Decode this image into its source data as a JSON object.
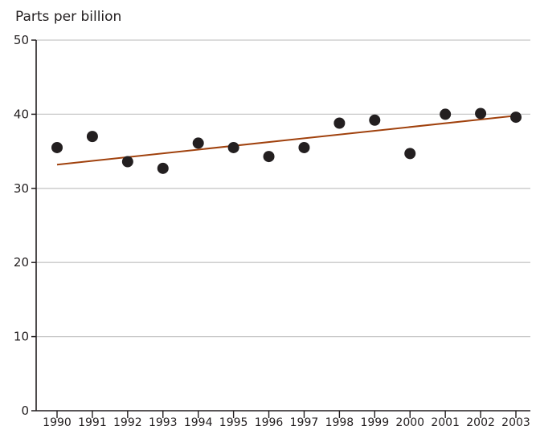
{
  "chart_data": {
    "type": "scatter",
    "title": "",
    "xlabel": "",
    "ylabel": "Parts per billion",
    "ylim": [
      0,
      50
    ],
    "yticks": [
      0,
      10,
      20,
      30,
      40,
      50
    ],
    "grid": true,
    "x": [
      "1990",
      "1991",
      "1992",
      "1993",
      "1994",
      "1995",
      "1996",
      "1997",
      "1998",
      "1999",
      "2000",
      "2001",
      "2002",
      "2003"
    ],
    "series": [
      {
        "values": [
          35.5,
          37.0,
          33.6,
          32.7,
          36.1,
          35.5,
          34.3,
          35.5,
          38.8,
          39.2,
          34.7,
          40.0,
          40.1,
          39.6
        ]
      }
    ],
    "trendline": {
      "start": {
        "x": "1990",
        "y": 33.2
      },
      "end": {
        "x": "2003",
        "y": 39.8
      }
    },
    "colors": {
      "points": "#231f20",
      "trendline": "#a0410d",
      "grid": "#c8c8c8",
      "axis": "#231f20"
    }
  }
}
